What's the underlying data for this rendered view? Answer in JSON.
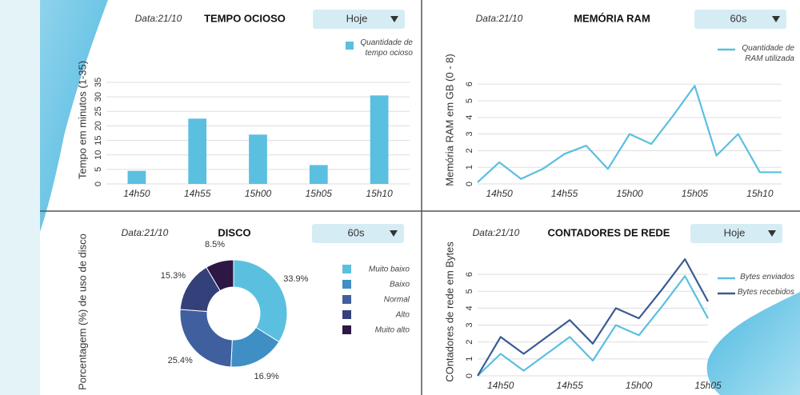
{
  "chart_data": [
    {
      "type": "bar",
      "date_label": "Data:21/10",
      "title": "TEMPO OCIOSO",
      "dropdown": "Hoje",
      "ylabel": "Tempo em minutos (1-35)",
      "categories": [
        "14h50",
        "14h55",
        "15h00",
        "15h05",
        "15h10"
      ],
      "series": [
        {
          "name": "Quantidade de tempo ocioso",
          "color": "#5bbfe0",
          "values": [
            4.5,
            22.5,
            17,
            6.5,
            30.5
          ]
        }
      ],
      "ylim": [
        0,
        35
      ],
      "yticks": [
        0,
        5,
        10,
        15,
        20,
        25,
        30,
        35
      ],
      "grid": true,
      "legend": "top-right"
    },
    {
      "type": "line",
      "date_label": "Data:21/10",
      "title": "MEMÓRIA RAM",
      "dropdown": "60s",
      "ylabel": "Memória RAM em GB (0 - 8)",
      "categories": [
        null,
        "14h50",
        null,
        null,
        "14h55",
        null,
        null,
        "15h00",
        null,
        null,
        "15h05",
        null,
        null,
        "15h10",
        null
      ],
      "series": [
        {
          "name": "Quantidade de RAM utilizada",
          "color": "#5bbfe0",
          "values": [
            0.1,
            1.3,
            0.3,
            0.9,
            1.8,
            2.3,
            0.9,
            3.0,
            2.4,
            4.1,
            5.9,
            1.7,
            3.0,
            0.7,
            0.7
          ]
        }
      ],
      "ylim": [
        0,
        6.3
      ],
      "yticks": [
        0,
        1,
        2,
        3,
        4,
        5,
        6
      ],
      "grid": true,
      "legend": "top-right"
    },
    {
      "type": "pie",
      "date_label": "Data:21/10",
      "title": "DISCO",
      "dropdown": "60s",
      "ylabel": "Porcentagem (%) de uso de disco",
      "categories": [
        "Muito baixo",
        "Baixo",
        "Normal",
        "Alto",
        "Muito alto"
      ],
      "values": [
        33.9,
        16.9,
        25.4,
        15.3,
        8.5
      ],
      "value_labels": [
        "33.9%",
        "16.9%",
        "25.4%",
        "15.3%",
        "8.5%"
      ],
      "colors": [
        "#5bbfe0",
        "#3f8fc4",
        "#3f5f9f",
        "#34407a",
        "#2d1745"
      ],
      "legend": "right"
    },
    {
      "type": "line",
      "date_label": "Data:21/10",
      "title": "CONTADORES DE REDE",
      "dropdown": "Hoje",
      "ylabel": "COntadores de rede em Bytes",
      "categories": [
        null,
        "14h50",
        null,
        null,
        "14h55",
        null,
        null,
        "15h00",
        null,
        null,
        "15h05"
      ],
      "series": [
        {
          "name": "Bytes enviados",
          "color": "#5bbfe0",
          "values": [
            0,
            1.3,
            0.3,
            1.3,
            2.3,
            0.9,
            3.0,
            2.4,
            4.1,
            5.9,
            3.4
          ]
        },
        {
          "name": "Bytes recebidos",
          "color": "#3b5a94",
          "values": [
            0,
            2.3,
            1.3,
            2.3,
            3.3,
            1.9,
            4.0,
            3.4,
            5.1,
            6.9,
            4.4
          ]
        }
      ],
      "ylim": [
        0,
        7
      ],
      "yticks": [
        0,
        1,
        2,
        3,
        4,
        5,
        6
      ],
      "grid": true,
      "legend": "right"
    }
  ]
}
